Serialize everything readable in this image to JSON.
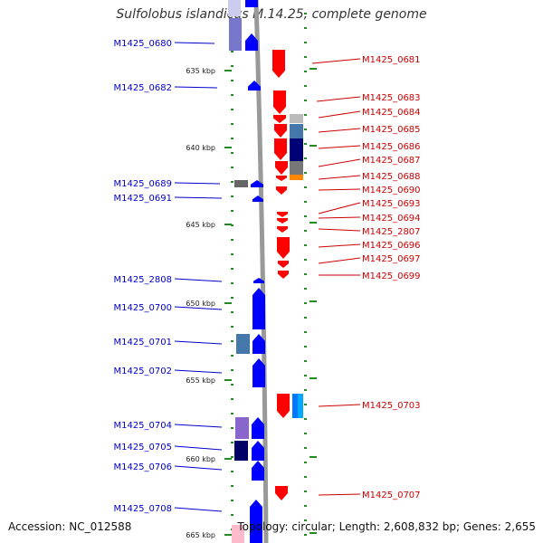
{
  "title": "Sulfolobus islandicus M.14.25, complete genome",
  "accession": "Accession: NC_012588",
  "topology": "Topology: circular; Length: 2,608,832 bp; Genes: 2,655",
  "kbp_labels": [
    "635 kbp",
    "640 kbp",
    "645 kbp",
    "650 kbp",
    "655 kbp",
    "660 kbp",
    "665 kbp"
  ],
  "left_genes": [
    "M1425_0680",
    "M1425_0682",
    "M1425_0689",
    "M1425_0691",
    "M1425_2808",
    "M1425_0700",
    "M1425_0701",
    "M1425_0702",
    "M1425_0704",
    "M1425_0705",
    "M1425_0706",
    "M1425_0708"
  ],
  "right_genes": [
    "M1425_0681",
    "M1425_0683",
    "M1425_0684",
    "M1425_0685",
    "M1425_0686",
    "M1425_0687",
    "M1425_0688",
    "M1425_0690",
    "M1425_0693",
    "M1425_0694",
    "M1425_2807",
    "M1425_0696",
    "M1425_0697",
    "M1425_0699",
    "M1425_0703",
    "M1425_0707"
  ],
  "colors": {
    "forward_strand": "#ff0000",
    "reverse_strand": "#0000ff",
    "backbone": "#999999",
    "ticks": "#228b22",
    "left_label": "#0000cc",
    "right_label": "#cc0000"
  }
}
